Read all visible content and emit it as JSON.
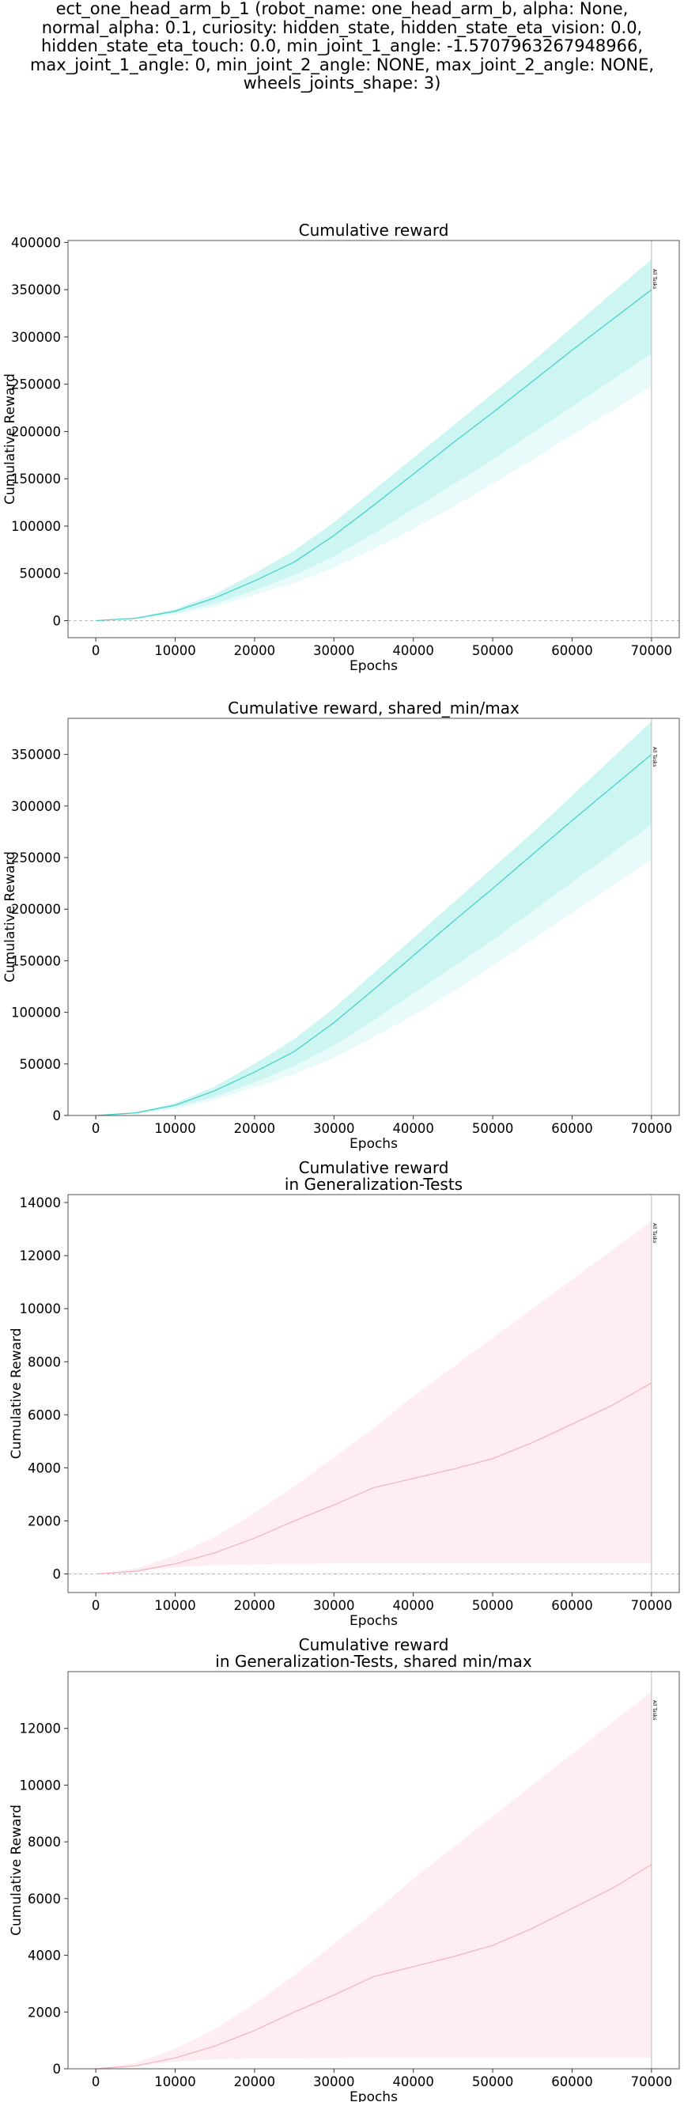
{
  "suptitle_lines": [
    "ect_one_head_arm_b_1 (robot_name: one_head_arm_b, alpha: None,",
    "normal_alpha: 0.1, curiosity: hidden_state, hidden_state_eta_vision: 0.0,",
    "hidden_state_eta_touch: 0.0, min_joint_1_angle: -1.5707963267948966,",
    "max_joint_1_angle: 0, min_joint_2_angle: NONE, max_joint_2_angle: NONE,",
    "wheels_joints_shape: 3)"
  ],
  "colors": {
    "train_line": "#48d1cc",
    "train_band_inner": "#cdf5f2",
    "train_band_outer": "#e9fafa",
    "gen_line": "#f4b4c1",
    "gen_band": "#ffeef1",
    "vline": "#bbbbbb",
    "zero_line": "#bbbbbb"
  },
  "chart_data": [
    {
      "type": "line",
      "title": "Cumulative reward",
      "xlabel": "Epochs",
      "ylabel": "Cumulative Reward",
      "xlim": [
        -3500,
        73500
      ],
      "ylim": [
        -18000,
        402000
      ],
      "xticks": [
        0,
        10000,
        20000,
        30000,
        40000,
        50000,
        60000,
        70000
      ],
      "yticks": [
        0,
        50000,
        100000,
        150000,
        200000,
        250000,
        300000,
        350000,
        400000
      ],
      "zero_line": true,
      "vline": {
        "x": 70000,
        "label": "All Tasks"
      },
      "series": [
        {
          "x": [
            0,
            5000,
            10000,
            15000,
            20000,
            25000,
            30000,
            35000,
            40000,
            45000,
            50000,
            55000,
            60000,
            65000,
            70000
          ],
          "values": [
            0,
            2500,
            10000,
            24000,
            42000,
            62000,
            90000,
            122000,
            155000,
            188000,
            220000,
            253000,
            286000,
            318000,
            350000
          ],
          "inner_band_low": [
            0,
            2000,
            8000,
            18000,
            32000,
            48000,
            68000,
            92000,
            118000,
            144000,
            170000,
            198000,
            226000,
            254000,
            282000
          ],
          "inner_band_high": [
            0,
            3000,
            12000,
            28000,
            50000,
            74000,
            104000,
            138000,
            172000,
            206000,
            240000,
            274000,
            310000,
            346000,
            382000
          ],
          "outer_band_low": [
            0,
            1500,
            6000,
            15000,
            27000,
            40000,
            56000,
            76000,
            97000,
            120000,
            145000,
            170000,
            196000,
            222000,
            248000
          ]
        }
      ]
    },
    {
      "type": "line",
      "title": "Cumulative reward, shared_min/max",
      "xlabel": "Epochs",
      "ylabel": "Cumulative Reward",
      "xlim": [
        -3500,
        73500
      ],
      "ylim": [
        0,
        385000
      ],
      "xticks": [
        0,
        10000,
        20000,
        30000,
        40000,
        50000,
        60000,
        70000
      ],
      "yticks": [
        0,
        50000,
        100000,
        150000,
        200000,
        250000,
        300000,
        350000
      ],
      "zero_line": false,
      "vline": {
        "x": 70000,
        "label": "All Tasks"
      },
      "series": [
        {
          "x": [
            0,
            5000,
            10000,
            15000,
            20000,
            25000,
            30000,
            35000,
            40000,
            45000,
            50000,
            55000,
            60000,
            65000,
            70000
          ],
          "values": [
            0,
            2500,
            10000,
            24000,
            42000,
            62000,
            90000,
            122000,
            155000,
            188000,
            220000,
            253000,
            286000,
            318000,
            350000
          ],
          "inner_band_low": [
            0,
            2000,
            8000,
            18000,
            32000,
            48000,
            68000,
            92000,
            118000,
            144000,
            170000,
            198000,
            226000,
            254000,
            282000
          ],
          "inner_band_high": [
            0,
            3000,
            12000,
            28000,
            50000,
            74000,
            104000,
            138000,
            172000,
            206000,
            240000,
            274000,
            310000,
            346000,
            382000
          ],
          "outer_band_low": [
            0,
            1500,
            6000,
            15000,
            27000,
            40000,
            56000,
            76000,
            97000,
            120000,
            145000,
            170000,
            196000,
            222000,
            248000
          ]
        }
      ]
    },
    {
      "type": "line",
      "title": "Cumulative reward\nin Generalization-Tests",
      "xlabel": "Epochs",
      "ylabel": "Cumulative Reward",
      "xlim": [
        -3500,
        73500
      ],
      "ylim": [
        -700,
        14300
      ],
      "xticks": [
        0,
        10000,
        20000,
        30000,
        40000,
        50000,
        60000,
        70000
      ],
      "yticks": [
        0,
        2000,
        4000,
        6000,
        8000,
        10000,
        12000,
        14000
      ],
      "zero_line": true,
      "vline": {
        "x": 70000,
        "label": "All Tasks"
      },
      "series": [
        {
          "x": [
            0,
            5000,
            10000,
            15000,
            20000,
            25000,
            30000,
            35000,
            40000,
            45000,
            50000,
            55000,
            60000,
            65000,
            70000
          ],
          "values": [
            0,
            100,
            380,
            800,
            1350,
            2000,
            2600,
            3250,
            3600,
            3950,
            4350,
            4950,
            5650,
            6350,
            7200
          ],
          "band_low": [
            0,
            80,
            250,
            330,
            370,
            380,
            390,
            400,
            400,
            400,
            400,
            400,
            400,
            400,
            400
          ],
          "band_high": [
            0,
            200,
            700,
            1400,
            2300,
            3300,
            4400,
            5500,
            6700,
            7800,
            8900,
            10000,
            11100,
            12200,
            13300
          ]
        }
      ]
    },
    {
      "type": "line",
      "title": "Cumulative reward\nin Generalization-Tests, shared min/max",
      "xlabel": "Epochs",
      "ylabel": "Cumulative Reward",
      "xlim": [
        -3500,
        73500
      ],
      "ylim": [
        0,
        14000
      ],
      "xticks": [
        0,
        10000,
        20000,
        30000,
        40000,
        50000,
        60000,
        70000
      ],
      "yticks": [
        0,
        2000,
        4000,
        6000,
        8000,
        10000,
        12000
      ],
      "zero_line": false,
      "vline": {
        "x": 70000,
        "label": "All Tasks"
      },
      "series": [
        {
          "x": [
            0,
            5000,
            10000,
            15000,
            20000,
            25000,
            30000,
            35000,
            40000,
            45000,
            50000,
            55000,
            60000,
            65000,
            70000
          ],
          "values": [
            0,
            100,
            380,
            800,
            1350,
            2000,
            2600,
            3250,
            3600,
            3950,
            4350,
            4950,
            5650,
            6350,
            7200
          ],
          "band_low": [
            0,
            80,
            250,
            330,
            370,
            380,
            390,
            400,
            400,
            400,
            400,
            400,
            400,
            400,
            400
          ],
          "band_high": [
            0,
            200,
            700,
            1400,
            2300,
            3300,
            4400,
            5500,
            6700,
            7800,
            8900,
            10000,
            11100,
            12200,
            13300
          ]
        }
      ]
    }
  ]
}
